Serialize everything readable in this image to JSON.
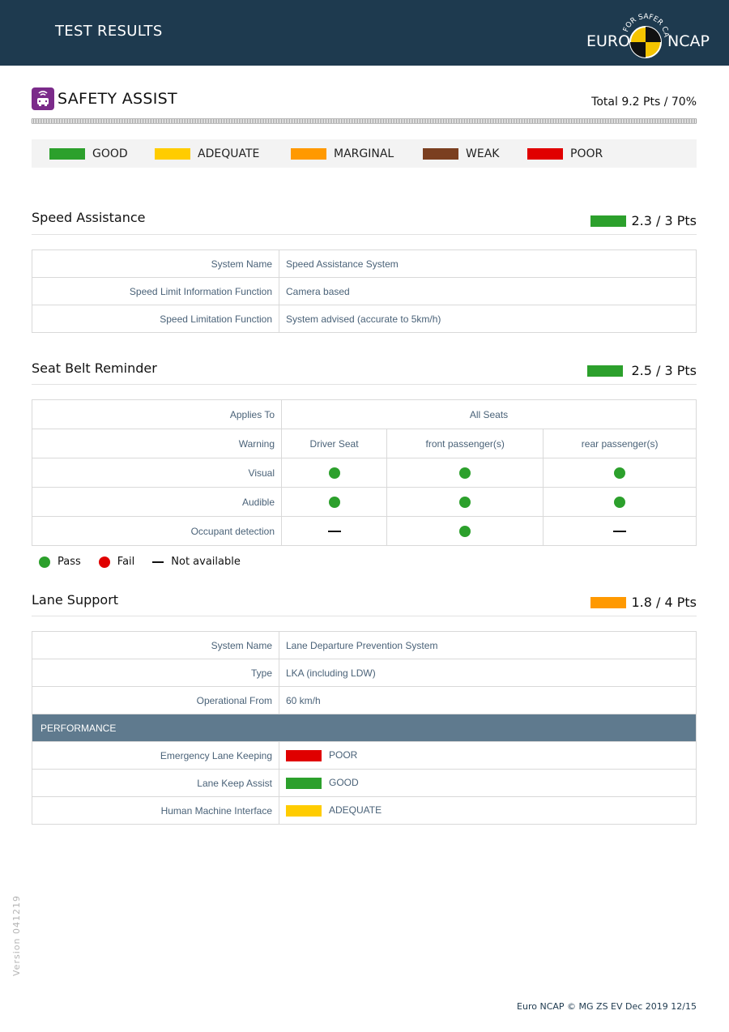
{
  "header": {
    "title": "TEST RESULTS",
    "logo_left": "EURO",
    "logo_right": "NCAP",
    "logo_arc": "FOR SAFER CARS"
  },
  "section": {
    "title": "SAFETY ASSIST",
    "total": "Total 9.2 Pts / 70%",
    "icon": "car-sensor-icon"
  },
  "colors": {
    "good": "#2ca02c",
    "adequate": "#ffcc00",
    "marginal": "#ff9900",
    "weak": "#7b3f20",
    "poor": "#e00000",
    "header": "#1e3a4f",
    "performance": "#5f7a8e"
  },
  "legend": [
    "GOOD",
    "ADEQUATE",
    "MARGINAL",
    "WEAK",
    "POOR"
  ],
  "speed_assistance": {
    "title": "Speed Assistance",
    "score": "2.3 / 3 Pts",
    "rows": [
      {
        "label": "System Name",
        "value": "Speed Assistance System"
      },
      {
        "label": "Speed Limit Information Function",
        "value": "Camera based"
      },
      {
        "label": "Speed Limitation Function",
        "value": "System advised (accurate to 5km/h)"
      }
    ]
  },
  "seat_belt": {
    "title": "Seat Belt Reminder",
    "score": "2.5 / 3 Pts",
    "applies_to_label": "Applies To",
    "applies_to_value": "All Seats",
    "warning_label": "Warning",
    "columns": [
      "Driver Seat",
      "front passenger(s)",
      "rear passenger(s)"
    ],
    "rows": [
      {
        "label": "Visual",
        "values": [
          "pass",
          "pass",
          "pass"
        ]
      },
      {
        "label": "Audible",
        "values": [
          "pass",
          "pass",
          "pass"
        ]
      },
      {
        "label": "Occupant detection",
        "values": [
          "not-available",
          "pass",
          "not-available"
        ]
      }
    ],
    "legend": {
      "pass": "Pass",
      "fail": "Fail",
      "na": "Not available"
    }
  },
  "lane_support": {
    "title": "Lane Support",
    "score": "1.8 / 4 Pts",
    "rows": [
      {
        "label": "System Name",
        "value": "Lane Departure Prevention System"
      },
      {
        "label": "Type",
        "value": "LKA (including LDW)"
      },
      {
        "label": "Operational From",
        "value": "60 km/h"
      }
    ],
    "performance_label": "PERFORMANCE",
    "performance": [
      {
        "label": "Emergency Lane Keeping",
        "rating": "POOR"
      },
      {
        "label": "Lane Keep Assist",
        "rating": "GOOD"
      },
      {
        "label": "Human Machine Interface",
        "rating": "ADEQUATE"
      }
    ]
  },
  "version": "Version 041219",
  "footer": "Euro NCAP © MG ZS EV Dec 2019 12/15"
}
